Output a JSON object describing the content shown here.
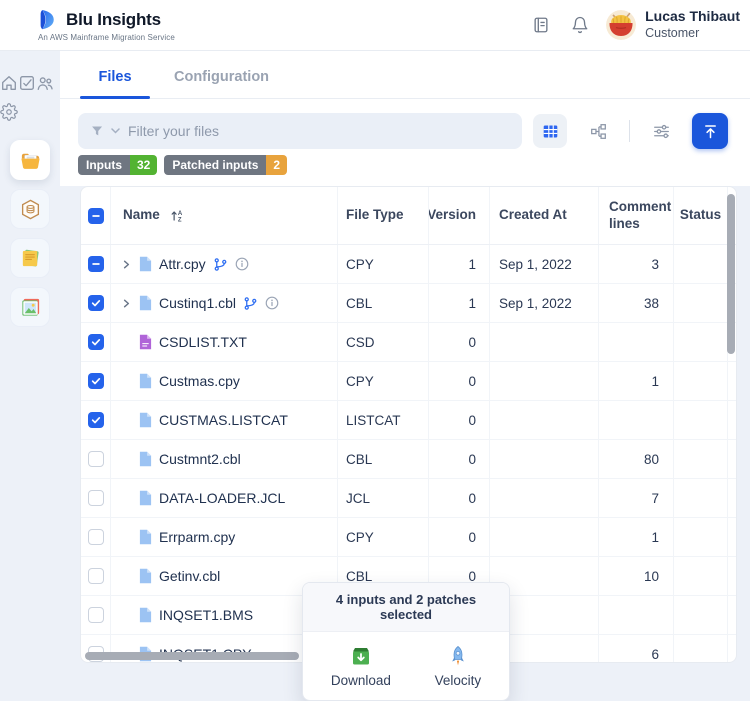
{
  "brand": {
    "title": "Blu Insights",
    "subtitle": "An AWS Mainframe Migration Service"
  },
  "topbar": {
    "user_name": "Lucas Thibaut",
    "user_role": "Customer",
    "icons": [
      "changelog-icon",
      "bell-icon",
      "ramen-avatar"
    ]
  },
  "tabs": [
    {
      "label": "Files",
      "active": true
    },
    {
      "label": "Configuration",
      "active": false
    }
  ],
  "toolbar": {
    "filter_placeholder": "Filter your files",
    "filter_icon": "funnel-icon",
    "view_buttons": [
      {
        "id": "table-view",
        "icon": "table-icon",
        "active": true
      },
      {
        "id": "tree-view",
        "icon": "tree-icon",
        "active": false
      },
      {
        "id": "display-settings",
        "icon": "sliders-icon",
        "active": false
      }
    ],
    "upload_icon": "upload-icon"
  },
  "badges": [
    {
      "label": "Inputs",
      "count": "32",
      "count_color": "#53b332"
    },
    {
      "label": "Patched inputs",
      "count": "2",
      "count_color": "#e8a33d"
    }
  ],
  "table": {
    "columns": [
      "Name",
      "File Type",
      "Version",
      "Created At",
      "Comment lines",
      "Status"
    ],
    "select_all_state": "indeterminate",
    "sort_column": "Name",
    "sort_icon": "sort-ascending-icon",
    "rows": [
      {
        "name": "Attr.cpy",
        "checkbox": "indeterminate",
        "expandable": true,
        "icon": "file-blue",
        "extras": [
          "branch-icon",
          "info-icon"
        ],
        "file_type": "CPY",
        "version": "1",
        "created_at": "Sep 1, 2022",
        "comment_lines": "3",
        "status": ""
      },
      {
        "name": "Custinq1.cbl",
        "checkbox": "checked",
        "expandable": true,
        "icon": "file-blue",
        "extras": [
          "branch-icon",
          "info-icon"
        ],
        "file_type": "CBL",
        "version": "1",
        "created_at": "Sep 1, 2022",
        "comment_lines": "38",
        "status": ""
      },
      {
        "name": "CSDLIST.TXT",
        "checkbox": "checked",
        "expandable": false,
        "icon": "file-purple",
        "extras": [],
        "file_type": "CSD",
        "version": "0",
        "created_at": "",
        "comment_lines": "",
        "status": ""
      },
      {
        "name": "Custmas.cpy",
        "checkbox": "checked",
        "expandable": false,
        "icon": "file-blue",
        "extras": [],
        "file_type": "CPY",
        "version": "0",
        "created_at": "",
        "comment_lines": "1",
        "status": ""
      },
      {
        "name": "CUSTMAS.LISTCAT",
        "checkbox": "checked",
        "expandable": false,
        "icon": "file-blue",
        "extras": [],
        "file_type": "LISTCAT",
        "version": "0",
        "created_at": "",
        "comment_lines": "",
        "status": ""
      },
      {
        "name": "Custmnt2.cbl",
        "checkbox": "unchecked",
        "expandable": false,
        "icon": "file-blue",
        "extras": [],
        "file_type": "CBL",
        "version": "0",
        "created_at": "",
        "comment_lines": "80",
        "status": ""
      },
      {
        "name": "DATA-LOADER.JCL",
        "checkbox": "unchecked",
        "expandable": false,
        "icon": "file-blue",
        "extras": [],
        "file_type": "JCL",
        "version": "0",
        "created_at": "",
        "comment_lines": "7",
        "status": ""
      },
      {
        "name": "Errparm.cpy",
        "checkbox": "unchecked",
        "expandable": false,
        "icon": "file-blue",
        "extras": [],
        "file_type": "CPY",
        "version": "0",
        "created_at": "",
        "comment_lines": "1",
        "status": ""
      },
      {
        "name": "Getinv.cbl",
        "checkbox": "unchecked",
        "expandable": false,
        "icon": "file-blue",
        "extras": [],
        "file_type": "CBL",
        "version": "0",
        "created_at": "",
        "comment_lines": "10",
        "status": ""
      },
      {
        "name": "INQSET1.BMS",
        "checkbox": "unchecked",
        "expandable": false,
        "icon": "file-blue",
        "extras": [],
        "file_type": "",
        "version": "",
        "created_at": "",
        "comment_lines": "",
        "status": ""
      },
      {
        "name": "INQSET1.CPY",
        "checkbox": "unchecked",
        "expandable": false,
        "icon": "file-blue",
        "extras": [],
        "file_type": "",
        "version": "",
        "created_at": "",
        "comment_lines": "6",
        "status": ""
      }
    ]
  },
  "selection_popup": {
    "title": "4 inputs and 2 patches selected",
    "actions": [
      {
        "label": "Download",
        "icon": "download-box-icon"
      },
      {
        "label": "Velocity",
        "icon": "rocket-icon"
      }
    ]
  },
  "sidebar": {
    "nav": [
      {
        "icon": "home-icon"
      },
      {
        "icon": "tasks-icon"
      },
      {
        "icon": "users-icon"
      },
      {
        "icon": "settings-icon"
      }
    ],
    "modules": [
      {
        "icon": "folder-icon",
        "active": true
      },
      {
        "icon": "hexagon-package-icon",
        "active": false
      },
      {
        "icon": "notes-icon",
        "active": false
      },
      {
        "icon": "gallery-icon",
        "active": false
      }
    ]
  },
  "colors": {
    "accent_blue": "#1a56db",
    "checkbox_blue": "#2563eb",
    "badge_gray": "#6f7681",
    "badge_green": "#53b332",
    "badge_orange": "#e8a33d",
    "page_bg": "#edf1f8"
  }
}
